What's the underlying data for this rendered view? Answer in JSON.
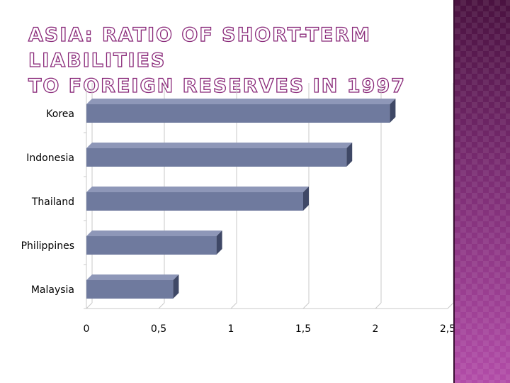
{
  "slide": {
    "title_line1": "Asia: ratio of short-term liabilities",
    "title_line2": "to foreign reserves in 1997"
  },
  "colors": {
    "bar_front": "#6f7a9e",
    "bar_top": "#8e97b8",
    "bar_side": "#3f4866",
    "title_outline": "#8a2a7a",
    "sidebar": "#6e2a68"
  },
  "chart_data": {
    "type": "bar",
    "orientation": "horizontal",
    "style": "3d",
    "categories": [
      "Korea",
      "Indonesia",
      "Thailand",
      "Philippines",
      "Malaysia"
    ],
    "values": [
      2.1,
      1.8,
      1.5,
      0.9,
      0.6
    ],
    "xlim": [
      0,
      2.5
    ],
    "x_ticks": [
      "0",
      "0,5",
      "1",
      "1,5",
      "2",
      "2,5"
    ],
    "grid": true,
    "legend": "none"
  }
}
